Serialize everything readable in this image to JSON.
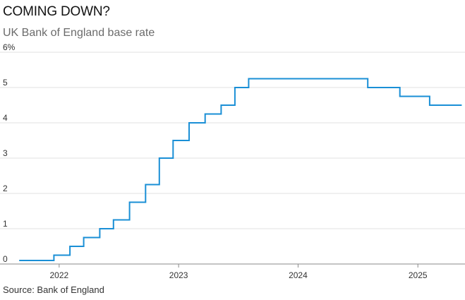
{
  "header": {
    "title": "COMING DOWN?",
    "subtitle": "UK Bank of England base rate"
  },
  "footer": {
    "source": "Source: Bank of England"
  },
  "chart_data": {
    "type": "line",
    "step": true,
    "title": "COMING DOWN?",
    "subtitle": "UK Bank of England base rate",
    "xlabel": "",
    "ylabel": "",
    "ylim": [
      0,
      6
    ],
    "y_ticks": [
      {
        "value": 0,
        "label": "0"
      },
      {
        "value": 1,
        "label": "1"
      },
      {
        "value": 2,
        "label": "2"
      },
      {
        "value": 3,
        "label": "3"
      },
      {
        "value": 4,
        "label": "4"
      },
      {
        "value": 5,
        "label": "5"
      },
      {
        "value": 6,
        "label": "6%"
      }
    ],
    "x_ticks": [
      {
        "value": "2022-01-01",
        "label": "2022"
      },
      {
        "value": "2023-01-01",
        "label": "2023"
      },
      {
        "value": "2024-01-01",
        "label": "2024"
      },
      {
        "value": "2025-01-01",
        "label": "2025"
      }
    ],
    "x_range": [
      "2021-08-25",
      "2025-05-25"
    ],
    "grid": "horizontal",
    "color": "#1a8fd6",
    "series": [
      {
        "points": [
          {
            "x": "2021-09-01",
            "y": 0.1
          },
          {
            "x": "2021-12-16",
            "y": 0.25
          },
          {
            "x": "2022-02-03",
            "y": 0.5
          },
          {
            "x": "2022-03-17",
            "y": 0.75
          },
          {
            "x": "2022-05-05",
            "y": 1.0
          },
          {
            "x": "2022-06-16",
            "y": 1.25
          },
          {
            "x": "2022-08-04",
            "y": 1.75
          },
          {
            "x": "2022-09-22",
            "y": 2.25
          },
          {
            "x": "2022-11-03",
            "y": 3.0
          },
          {
            "x": "2022-12-15",
            "y": 3.5
          },
          {
            "x": "2023-02-02",
            "y": 4.0
          },
          {
            "x": "2023-03-23",
            "y": 4.25
          },
          {
            "x": "2023-05-11",
            "y": 4.5
          },
          {
            "x": "2023-06-22",
            "y": 5.0
          },
          {
            "x": "2023-08-03",
            "y": 5.25
          },
          {
            "x": "2024-08-01",
            "y": 5.0
          },
          {
            "x": "2024-11-07",
            "y": 4.75
          },
          {
            "x": "2025-02-06",
            "y": 4.5
          },
          {
            "x": "2025-05-15",
            "y": 4.5
          }
        ]
      }
    ]
  }
}
